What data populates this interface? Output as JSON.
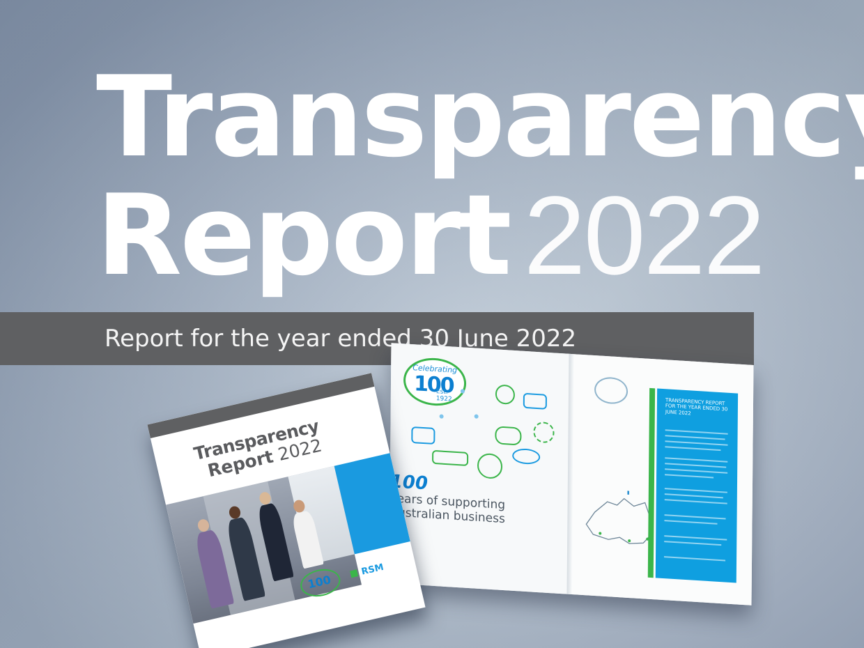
{
  "hero": {
    "title_line1": "Transparency",
    "title_line2_bold": "Report",
    "title_line2_light": "2022",
    "banner_text": "Report for the year ended 30 June 2022"
  },
  "spread": {
    "badge_top": "Celebrating",
    "badge_number": "100",
    "badge_est": "Est. 1922",
    "big_number": "100",
    "tagline_line1": "years of supporting",
    "tagline_line2": "Australian business",
    "panel_title": "TRANSPARENCY REPORT FOR THE YEAR ENDED 30 JUNE 2022"
  },
  "cover": {
    "title_line1": "Transparency",
    "title_bold": "Report",
    "title_year": "2022",
    "brand": "RSM",
    "badge_number": "100"
  },
  "colors": {
    "accent_blue": "#0f9fe0",
    "accent_green": "#3bb54a",
    "banner_grey": "#5f6062"
  }
}
